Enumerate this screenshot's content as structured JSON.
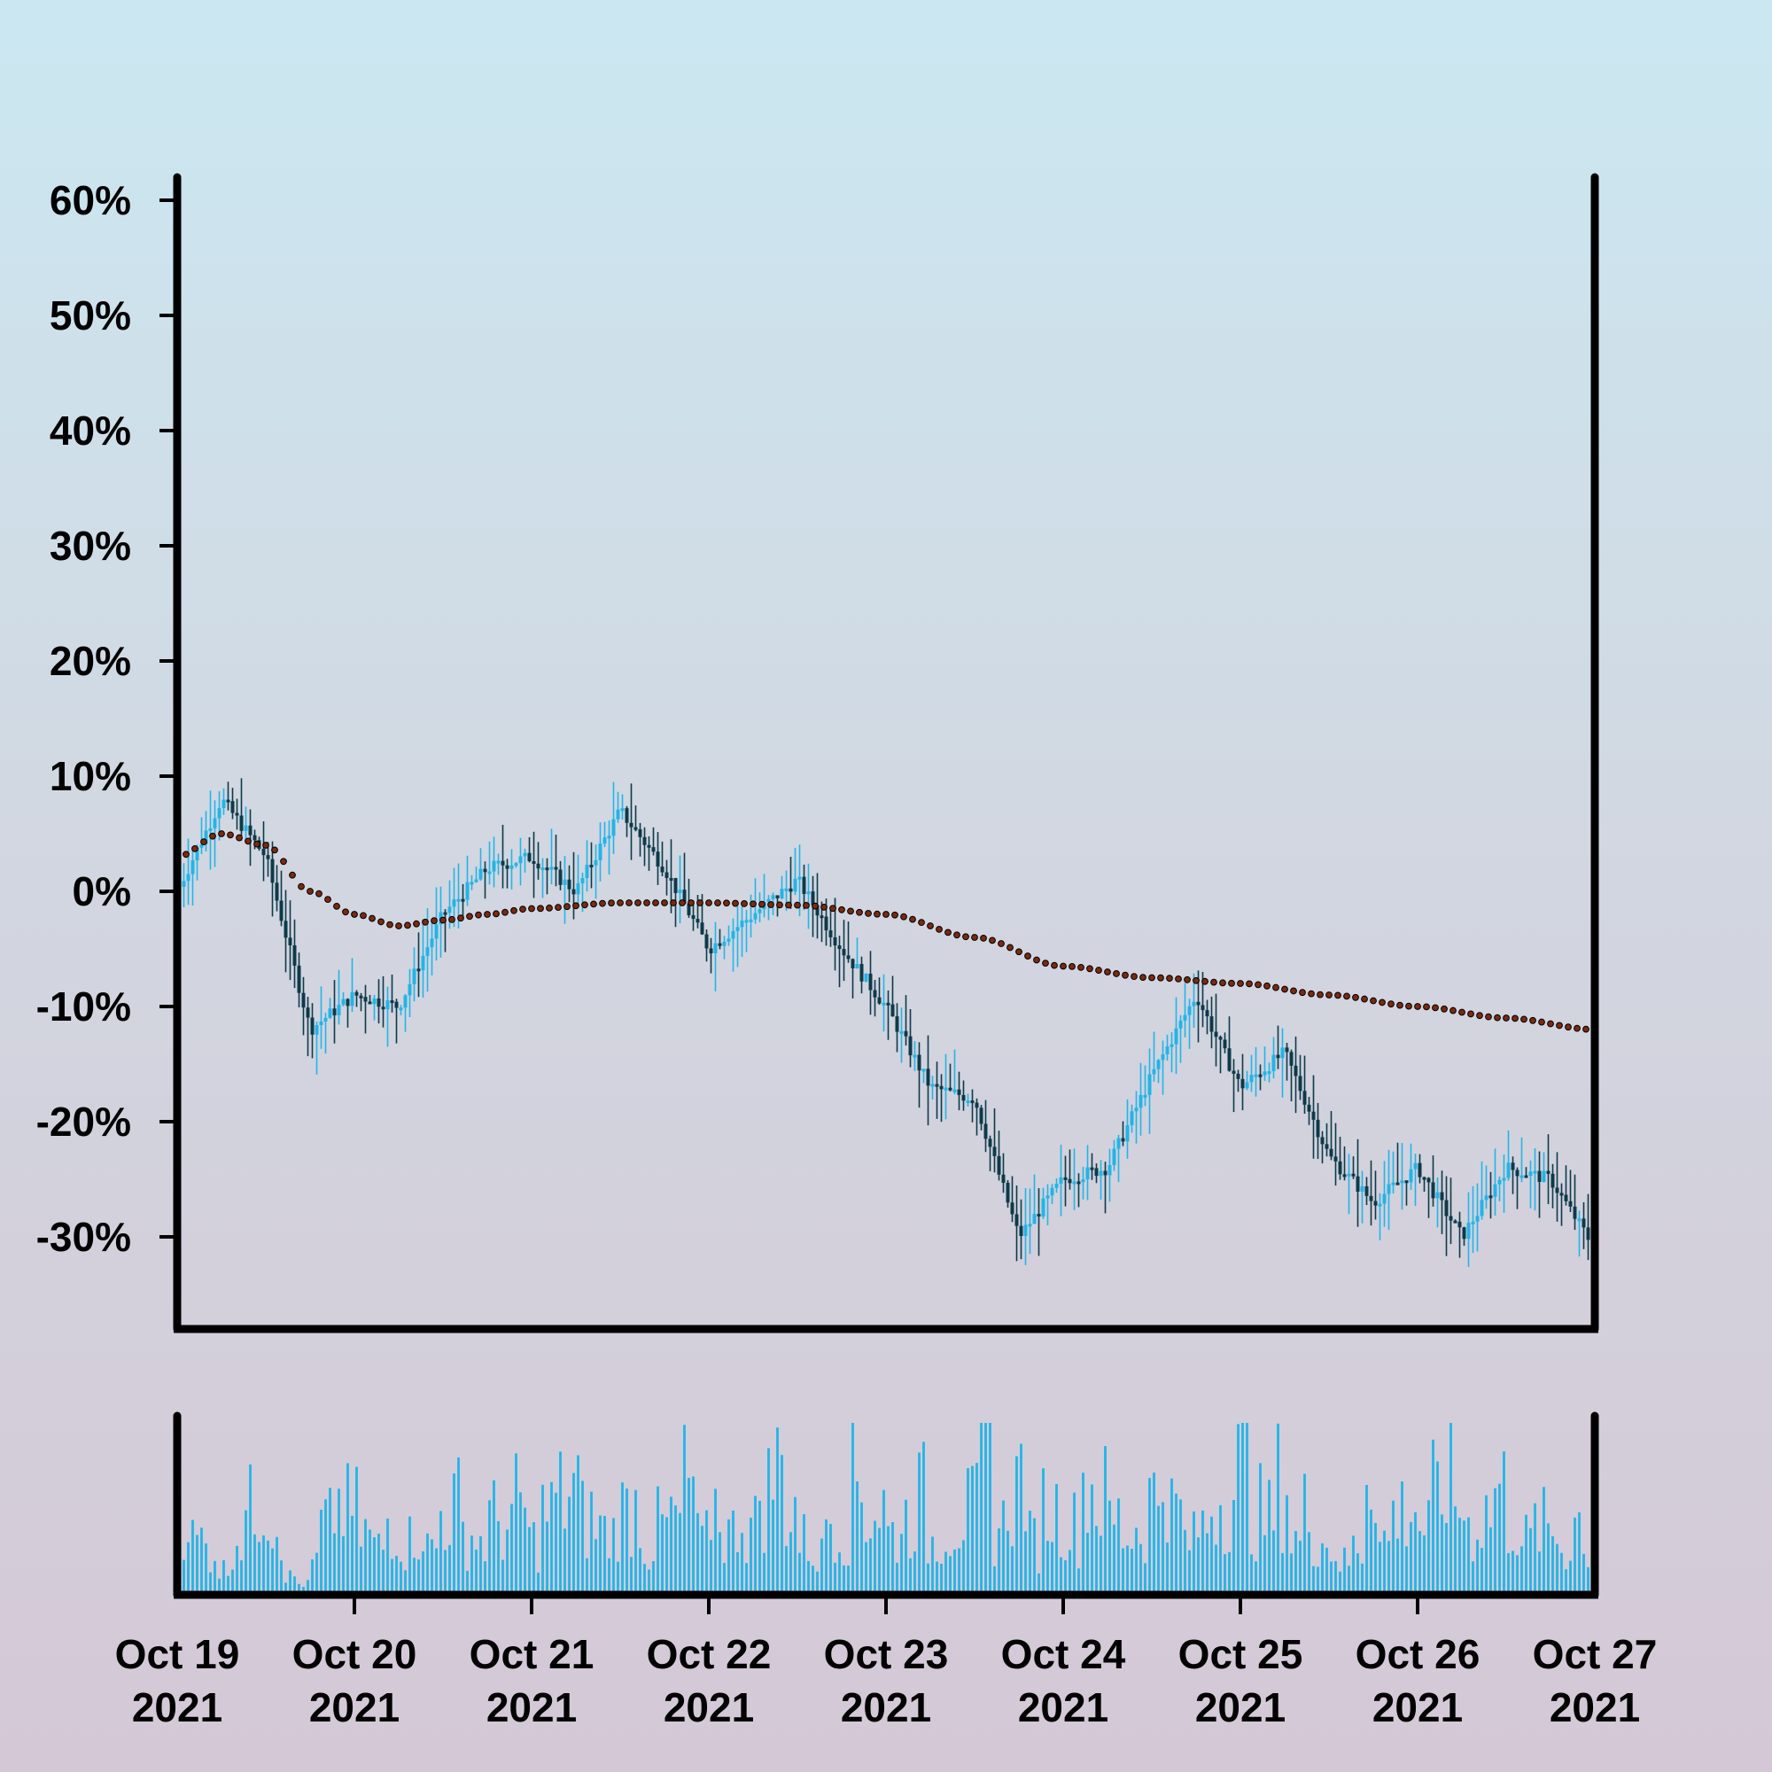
{
  "chart_data": {
    "type": "candlestick",
    "title": "",
    "xlabel": "",
    "ylabel": "",
    "yticks": [
      "60%",
      "50%",
      "40%",
      "30%",
      "20%",
      "10%",
      "0%",
      "-10%",
      "-20%",
      "-30%"
    ],
    "ytick_values": [
      60,
      50,
      40,
      30,
      20,
      10,
      0,
      -10,
      -20,
      -30
    ],
    "ylim": [
      -38,
      62
    ],
    "xticks": [
      {
        "date": "Oct 19",
        "year": "2021"
      },
      {
        "date": "Oct 20",
        "year": "2021"
      },
      {
        "date": "Oct 21",
        "year": "2021"
      },
      {
        "date": "Oct 22",
        "year": "2021"
      },
      {
        "date": "Oct 23",
        "year": "2021"
      },
      {
        "date": "Oct 24",
        "year": "2021"
      },
      {
        "date": "Oct 25",
        "year": "2021"
      },
      {
        "date": "Oct 26",
        "year": "2021"
      },
      {
        "date": "Oct 27",
        "year": "2021"
      }
    ],
    "xlim": [
      "2021-10-19 00:00",
      "2021-10-27 00:00"
    ],
    "up_color": "#22b5e8",
    "down_color": "#0d3a4a",
    "trend_color": "#7a2a10",
    "volume_color": "#22b5e8",
    "price_path": [
      {
        "t": "2021-10-19 00:00",
        "y": 0
      },
      {
        "t": "2021-10-19 06:00",
        "y": 8
      },
      {
        "t": "2021-10-19 12:00",
        "y": 3
      },
      {
        "t": "2021-10-19 18:00",
        "y": -12
      },
      {
        "t": "2021-10-20 00:00",
        "y": -9
      },
      {
        "t": "2021-10-20 06:00",
        "y": -10
      },
      {
        "t": "2021-10-20 12:00",
        "y": -2
      },
      {
        "t": "2021-10-20 18:00",
        "y": 2
      },
      {
        "t": "2021-10-21 00:00",
        "y": 3
      },
      {
        "t": "2021-10-21 06:00",
        "y": 0
      },
      {
        "t": "2021-10-21 12:00",
        "y": 7
      },
      {
        "t": "2021-10-21 18:00",
        "y": 2
      },
      {
        "t": "2021-10-22 00:00",
        "y": -5
      },
      {
        "t": "2021-10-22 06:00",
        "y": -2
      },
      {
        "t": "2021-10-22 12:00",
        "y": 1
      },
      {
        "t": "2021-10-22 18:00",
        "y": -5
      },
      {
        "t": "2021-10-23 00:00",
        "y": -10
      },
      {
        "t": "2021-10-23 06:00",
        "y": -17
      },
      {
        "t": "2021-10-23 12:00",
        "y": -18
      },
      {
        "t": "2021-10-23 18:00",
        "y": -30
      },
      {
        "t": "2021-10-24 00:00",
        "y": -25
      },
      {
        "t": "2021-10-24 06:00",
        "y": -24
      },
      {
        "t": "2021-10-24 12:00",
        "y": -16
      },
      {
        "t": "2021-10-24 18:00",
        "y": -9
      },
      {
        "t": "2021-10-25 00:00",
        "y": -17
      },
      {
        "t": "2021-10-25 06:00",
        "y": -14
      },
      {
        "t": "2021-10-25 12:00",
        "y": -23
      },
      {
        "t": "2021-10-25 18:00",
        "y": -27
      },
      {
        "t": "2021-10-26 00:00",
        "y": -24
      },
      {
        "t": "2021-10-26 06:00",
        "y": -30
      },
      {
        "t": "2021-10-26 12:00",
        "y": -24
      },
      {
        "t": "2021-10-26 18:00",
        "y": -25
      },
      {
        "t": "2021-10-27 00:00",
        "y": -31
      }
    ],
    "trend": [
      {
        "t": "2021-10-19 00:00",
        "y": 3
      },
      {
        "t": "2021-10-19 06:00",
        "y": 5
      },
      {
        "t": "2021-10-19 12:00",
        "y": 4
      },
      {
        "t": "2021-10-19 18:00",
        "y": 0
      },
      {
        "t": "2021-10-20 00:00",
        "y": -2
      },
      {
        "t": "2021-10-20 06:00",
        "y": -3
      },
      {
        "t": "2021-10-20 12:00",
        "y": -2.5
      },
      {
        "t": "2021-10-20 18:00",
        "y": -2
      },
      {
        "t": "2021-10-21 00:00",
        "y": -1.5
      },
      {
        "t": "2021-10-21 12:00",
        "y": -1
      },
      {
        "t": "2021-10-22 00:00",
        "y": -1
      },
      {
        "t": "2021-10-22 12:00",
        "y": -1.2
      },
      {
        "t": "2021-10-23 00:00",
        "y": -2
      },
      {
        "t": "2021-10-23 12:00",
        "y": -4
      },
      {
        "t": "2021-10-24 00:00",
        "y": -6.5
      },
      {
        "t": "2021-10-24 12:00",
        "y": -7.5
      },
      {
        "t": "2021-10-25 00:00",
        "y": -8
      },
      {
        "t": "2021-10-25 12:00",
        "y": -9
      },
      {
        "t": "2021-10-26 00:00",
        "y": -10
      },
      {
        "t": "2021-10-26 12:00",
        "y": -11
      },
      {
        "t": "2021-10-27 00:00",
        "y": -12
      }
    ],
    "volume_levels": [
      0.6,
      0.35,
      0.3,
      0.15,
      0.4,
      0.55,
      0.7,
      0.5,
      0.1,
      0.05,
      0.2,
      0.45,
      0.6,
      0.55,
      0.4,
      0.3,
      0.5,
      0.35,
      0.45,
      0.3,
      0.55,
      0.6,
      0.4,
      0.35,
      0.5,
      0.45,
      0.6,
      0.35,
      0.55,
      0.65,
      0.7,
      0.5,
      0.45,
      0.4,
      0.55,
      0.6,
      0.3,
      0.45,
      0.5,
      0.75,
      0.35,
      0.6,
      0.4,
      0.55,
      0.45,
      0.7,
      0.85,
      0.6,
      0.35,
      0.25,
      0.55,
      0.45,
      0.75,
      0.55,
      0.6,
      0.4,
      0.5,
      0.65,
      0.35,
      0.45,
      0.5,
      0.55,
      0.95,
      0.45,
      0.7,
      0.85,
      0.35,
      0.6,
      0.55,
      0.45,
      0.75,
      0.65,
      0.5,
      0.4,
      0.45,
      0.65,
      0.9,
      0.55,
      0.35,
      0.45,
      0.65,
      0.7,
      0.85,
      0.55,
      0.5,
      0.75,
      0.35,
      0.55,
      0.4,
      0.3,
      0.2,
      0.3,
      0.95,
      0.35,
      0.55,
      0.6,
      0.45,
      0.65,
      0.85,
      0.6,
      0.45,
      0.55,
      0.7,
      0.5,
      0.35,
      0.45,
      0.4,
      0.3,
      0.5,
      0.2
    ]
  }
}
